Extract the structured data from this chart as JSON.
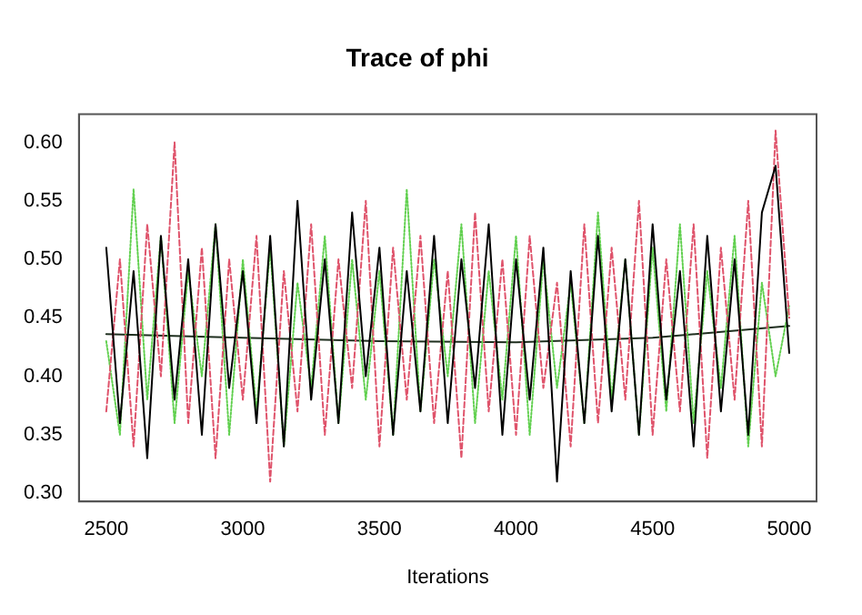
{
  "chart_data": {
    "type": "line",
    "title": "Trace of phi",
    "xlabel": "Iterations",
    "x": [
      2500,
      2550,
      2600,
      2650,
      2700,
      2750,
      2800,
      2850,
      2900,
      2950,
      3000,
      3050,
      3100,
      3150,
      3200,
      3250,
      3300,
      3350,
      3400,
      3450,
      3500,
      3550,
      3600,
      3650,
      3700,
      3750,
      3800,
      3850,
      3900,
      3950,
      4000,
      4050,
      4100,
      4150,
      4200,
      4250,
      4300,
      4350,
      4400,
      4450,
      4500,
      4550,
      4600,
      4650,
      4700,
      4750,
      4800,
      4850,
      4900,
      4950,
      5000
    ],
    "series": [
      {
        "color": "#000000",
        "line_style": "solid",
        "values": [
          0.51,
          0.36,
          0.49,
          0.33,
          0.52,
          0.38,
          0.5,
          0.35,
          0.53,
          0.39,
          0.49,
          0.36,
          0.52,
          0.34,
          0.55,
          0.38,
          0.5,
          0.36,
          0.54,
          0.4,
          0.51,
          0.35,
          0.49,
          0.37,
          0.52,
          0.36,
          0.5,
          0.39,
          0.53,
          0.35,
          0.5,
          0.38,
          0.51,
          0.31,
          0.49,
          0.36,
          0.52,
          0.37,
          0.5,
          0.35,
          0.53,
          0.38,
          0.49,
          0.34,
          0.52,
          0.37,
          0.5,
          0.35,
          0.54,
          0.58,
          0.42
        ]
      },
      {
        "color": "#df536b",
        "line_style": "dashed",
        "values": [
          0.37,
          0.5,
          0.34,
          0.53,
          0.4,
          0.6,
          0.36,
          0.51,
          0.33,
          0.5,
          0.38,
          0.52,
          0.31,
          0.49,
          0.37,
          0.53,
          0.35,
          0.5,
          0.39,
          0.55,
          0.34,
          0.51,
          0.38,
          0.52,
          0.36,
          0.49,
          0.33,
          0.54,
          0.37,
          0.5,
          0.35,
          0.52,
          0.39,
          0.48,
          0.34,
          0.53,
          0.36,
          0.51,
          0.38,
          0.55,
          0.35,
          0.5,
          0.37,
          0.53,
          0.33,
          0.51,
          0.38,
          0.55,
          0.34,
          0.61,
          0.45
        ]
      },
      {
        "color": "#61d04f",
        "line_style": "dotted",
        "values": [
          0.43,
          0.35,
          0.56,
          0.38,
          0.52,
          0.36,
          0.49,
          0.4,
          0.53,
          0.35,
          0.5,
          0.37,
          0.51,
          0.34,
          0.48,
          0.39,
          0.52,
          0.36,
          0.5,
          0.38,
          0.49,
          0.35,
          0.56,
          0.37,
          0.5,
          0.4,
          0.53,
          0.36,
          0.49,
          0.38,
          0.52,
          0.35,
          0.5,
          0.39,
          0.48,
          0.36,
          0.54,
          0.38,
          0.5,
          0.35,
          0.51,
          0.37,
          0.53,
          0.36,
          0.49,
          0.39,
          0.52,
          0.34,
          0.48,
          0.4,
          0.46
        ]
      },
      {
        "color": "#1f2f1f",
        "line_style": "solid",
        "x": [
          2500,
          3000,
          3500,
          4000,
          4500,
          5000
        ],
        "values": [
          0.436,
          0.433,
          0.43,
          0.429,
          0.433,
          0.443
        ]
      }
    ],
    "xlim": [
      2400,
      5100
    ],
    "xticks": [
      2500,
      3000,
      3500,
      4000,
      4500,
      5000
    ],
    "ylim": [
      0.293,
      0.624
    ],
    "yticks": [
      {
        "value": 0.3,
        "label": "0.30"
      },
      0.35,
      {
        "value": 0.4,
        "label": "0.40"
      },
      0.45,
      {
        "value": 0.5,
        "label": "0.50"
      },
      0.55,
      {
        "value": 0.6,
        "label": "0.60"
      }
    ],
    "grid": false,
    "legend": false,
    "marker": "none"
  }
}
